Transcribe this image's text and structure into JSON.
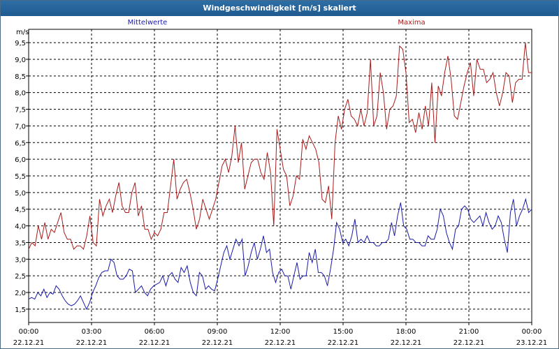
{
  "window": {
    "title": "Windgeschwindigkeit [m/s] skaliert"
  },
  "chart_data": {
    "type": "line",
    "title": "Windgeschwindigkeit [m/s] skaliert",
    "ylabel": "m/s",
    "ylim": [
      1.1,
      9.9
    ],
    "yticks": [
      "1,5",
      "2,0",
      "2,5",
      "3,0",
      "3,5",
      "4,0",
      "4,5",
      "5,0",
      "5,5",
      "6,0",
      "6,5",
      "7,0",
      "7,5",
      "8,0",
      "8,5",
      "9,0",
      "9,5"
    ],
    "x_hours_range": [
      0,
      24
    ],
    "xticks": [
      {
        "time": "00:00",
        "date": "22.12.21"
      },
      {
        "time": "03:00",
        "date": "22.12.21"
      },
      {
        "time": "06:00",
        "date": "22.12.21"
      },
      {
        "time": "09:00",
        "date": "22.12.21"
      },
      {
        "time": "12:00",
        "date": "22.12.21"
      },
      {
        "time": "15:00",
        "date": "22.12.21"
      },
      {
        "time": "18:00",
        "date": "22.12.21"
      },
      {
        "time": "21:00",
        "date": "22.12.21"
      },
      {
        "time": "00:00",
        "date": "23.12.21"
      }
    ],
    "grid": true,
    "series": [
      {
        "name": "Mittelwerte",
        "color": "#1a1aaa",
        "step_hours": 0.1667,
        "values": [
          1.8,
          1.85,
          1.8,
          2.0,
          1.9,
          2.1,
          1.85,
          2.0,
          1.95,
          2.2,
          2.1,
          1.9,
          1.75,
          1.65,
          1.6,
          1.65,
          1.75,
          1.9,
          1.7,
          1.5,
          1.7,
          2.0,
          2.2,
          2.45,
          2.6,
          2.65,
          2.65,
          3.0,
          2.9,
          2.5,
          2.4,
          2.4,
          2.5,
          2.7,
          2.65,
          2.0,
          2.1,
          2.2,
          2.0,
          1.9,
          2.1,
          2.2,
          2.25,
          2.3,
          2.5,
          2.2,
          2.5,
          2.6,
          2.4,
          2.3,
          2.75,
          2.6,
          2.8,
          2.3,
          2.0,
          1.9,
          2.6,
          2.5,
          2.1,
          2.2,
          2.1,
          2.05,
          2.4,
          2.8,
          3.2,
          3.4,
          3.0,
          3.3,
          3.6,
          3.4,
          3.6,
          2.5,
          2.8,
          3.2,
          3.5,
          3.0,
          3.3,
          3.7,
          3.2,
          3.3,
          2.6,
          2.3,
          2.6,
          2.7,
          2.5,
          2.5,
          2.1,
          2.5,
          2.9,
          2.4,
          2.5,
          2.5,
          3.2,
          2.9,
          3.3,
          2.6,
          2.6,
          2.5,
          2.2,
          2.7,
          3.3,
          4.1,
          3.9,
          3.5,
          3.6,
          3.4,
          3.7,
          4.2,
          3.5,
          3.6,
          3.5,
          3.7,
          3.5,
          3.5,
          3.4,
          3.4,
          3.5,
          3.5,
          3.6,
          4.1,
          3.7,
          4.3,
          4.7,
          4.0,
          3.9,
          3.6,
          3.6,
          3.5,
          3.5,
          3.4,
          3.4,
          3.7,
          3.6,
          3.6,
          3.9,
          4.5,
          4.3,
          3.8,
          3.5,
          3.3,
          3.9,
          4.0,
          4.5,
          4.6,
          4.5,
          4.2,
          4.1,
          4.2,
          4.3,
          4.0,
          4.4,
          4.1,
          3.9,
          4.0,
          4.3,
          4.1,
          3.6,
          3.2,
          4.4,
          4.8,
          4.0,
          4.3,
          4.5,
          4.8,
          4.4,
          4.5
        ]
      },
      {
        "name": "Maxima",
        "color": "#aa1a1a",
        "step_hours": 0.1667,
        "values": [
          3.3,
          3.5,
          3.4,
          4.0,
          3.6,
          4.1,
          3.6,
          3.9,
          3.8,
          4.1,
          4.4,
          3.8,
          3.6,
          3.6,
          3.3,
          3.4,
          3.4,
          3.3,
          3.7,
          4.3,
          3.5,
          3.4,
          4.8,
          4.3,
          4.6,
          4.8,
          4.4,
          4.9,
          5.3,
          4.6,
          4.4,
          4.4,
          5.0,
          5.3,
          4.3,
          4.6,
          3.9,
          3.9,
          3.6,
          3.8,
          3.7,
          3.9,
          4.4,
          4.4,
          5.2,
          6.0,
          4.8,
          5.1,
          5.3,
          5.4,
          5.0,
          4.5,
          3.9,
          4.2,
          4.8,
          4.5,
          4.2,
          4.5,
          4.8,
          5.3,
          5.8,
          6.0,
          5.6,
          6.1,
          7.0,
          5.9,
          6.5,
          5.1,
          5.5,
          5.9,
          6.0,
          6.0,
          5.6,
          5.4,
          6.2,
          5.6,
          4.0,
          6.9,
          6.3,
          5.7,
          5.5,
          4.6,
          4.9,
          5.5,
          5.4,
          6.6,
          6.3,
          6.7,
          6.5,
          6.3,
          5.9,
          4.8,
          4.7,
          5.2,
          4.2,
          6.5,
          7.3,
          6.9,
          7.5,
          7.8,
          7.3,
          7.2,
          7.0,
          7.5,
          7.0,
          7.4,
          9.0,
          7.0,
          7.3,
          8.6,
          8.0,
          6.9,
          7.5,
          7.6,
          7.9,
          9.4,
          9.3,
          8.6,
          7.1,
          7.2,
          6.8,
          7.4,
          6.9,
          7.6,
          7.0,
          8.3,
          6.5,
          8.2,
          7.9,
          8.6,
          9.1,
          8.4,
          7.3,
          7.2,
          7.7,
          8.2,
          8.6,
          8.9,
          7.9,
          9.0,
          8.7,
          8.7,
          8.3,
          8.4,
          8.6,
          8.0,
          7.6,
          8.0,
          8.6,
          8.5,
          7.7,
          8.3,
          8.4,
          8.4,
          9.5,
          8.6,
          8.6
        ]
      }
    ]
  }
}
